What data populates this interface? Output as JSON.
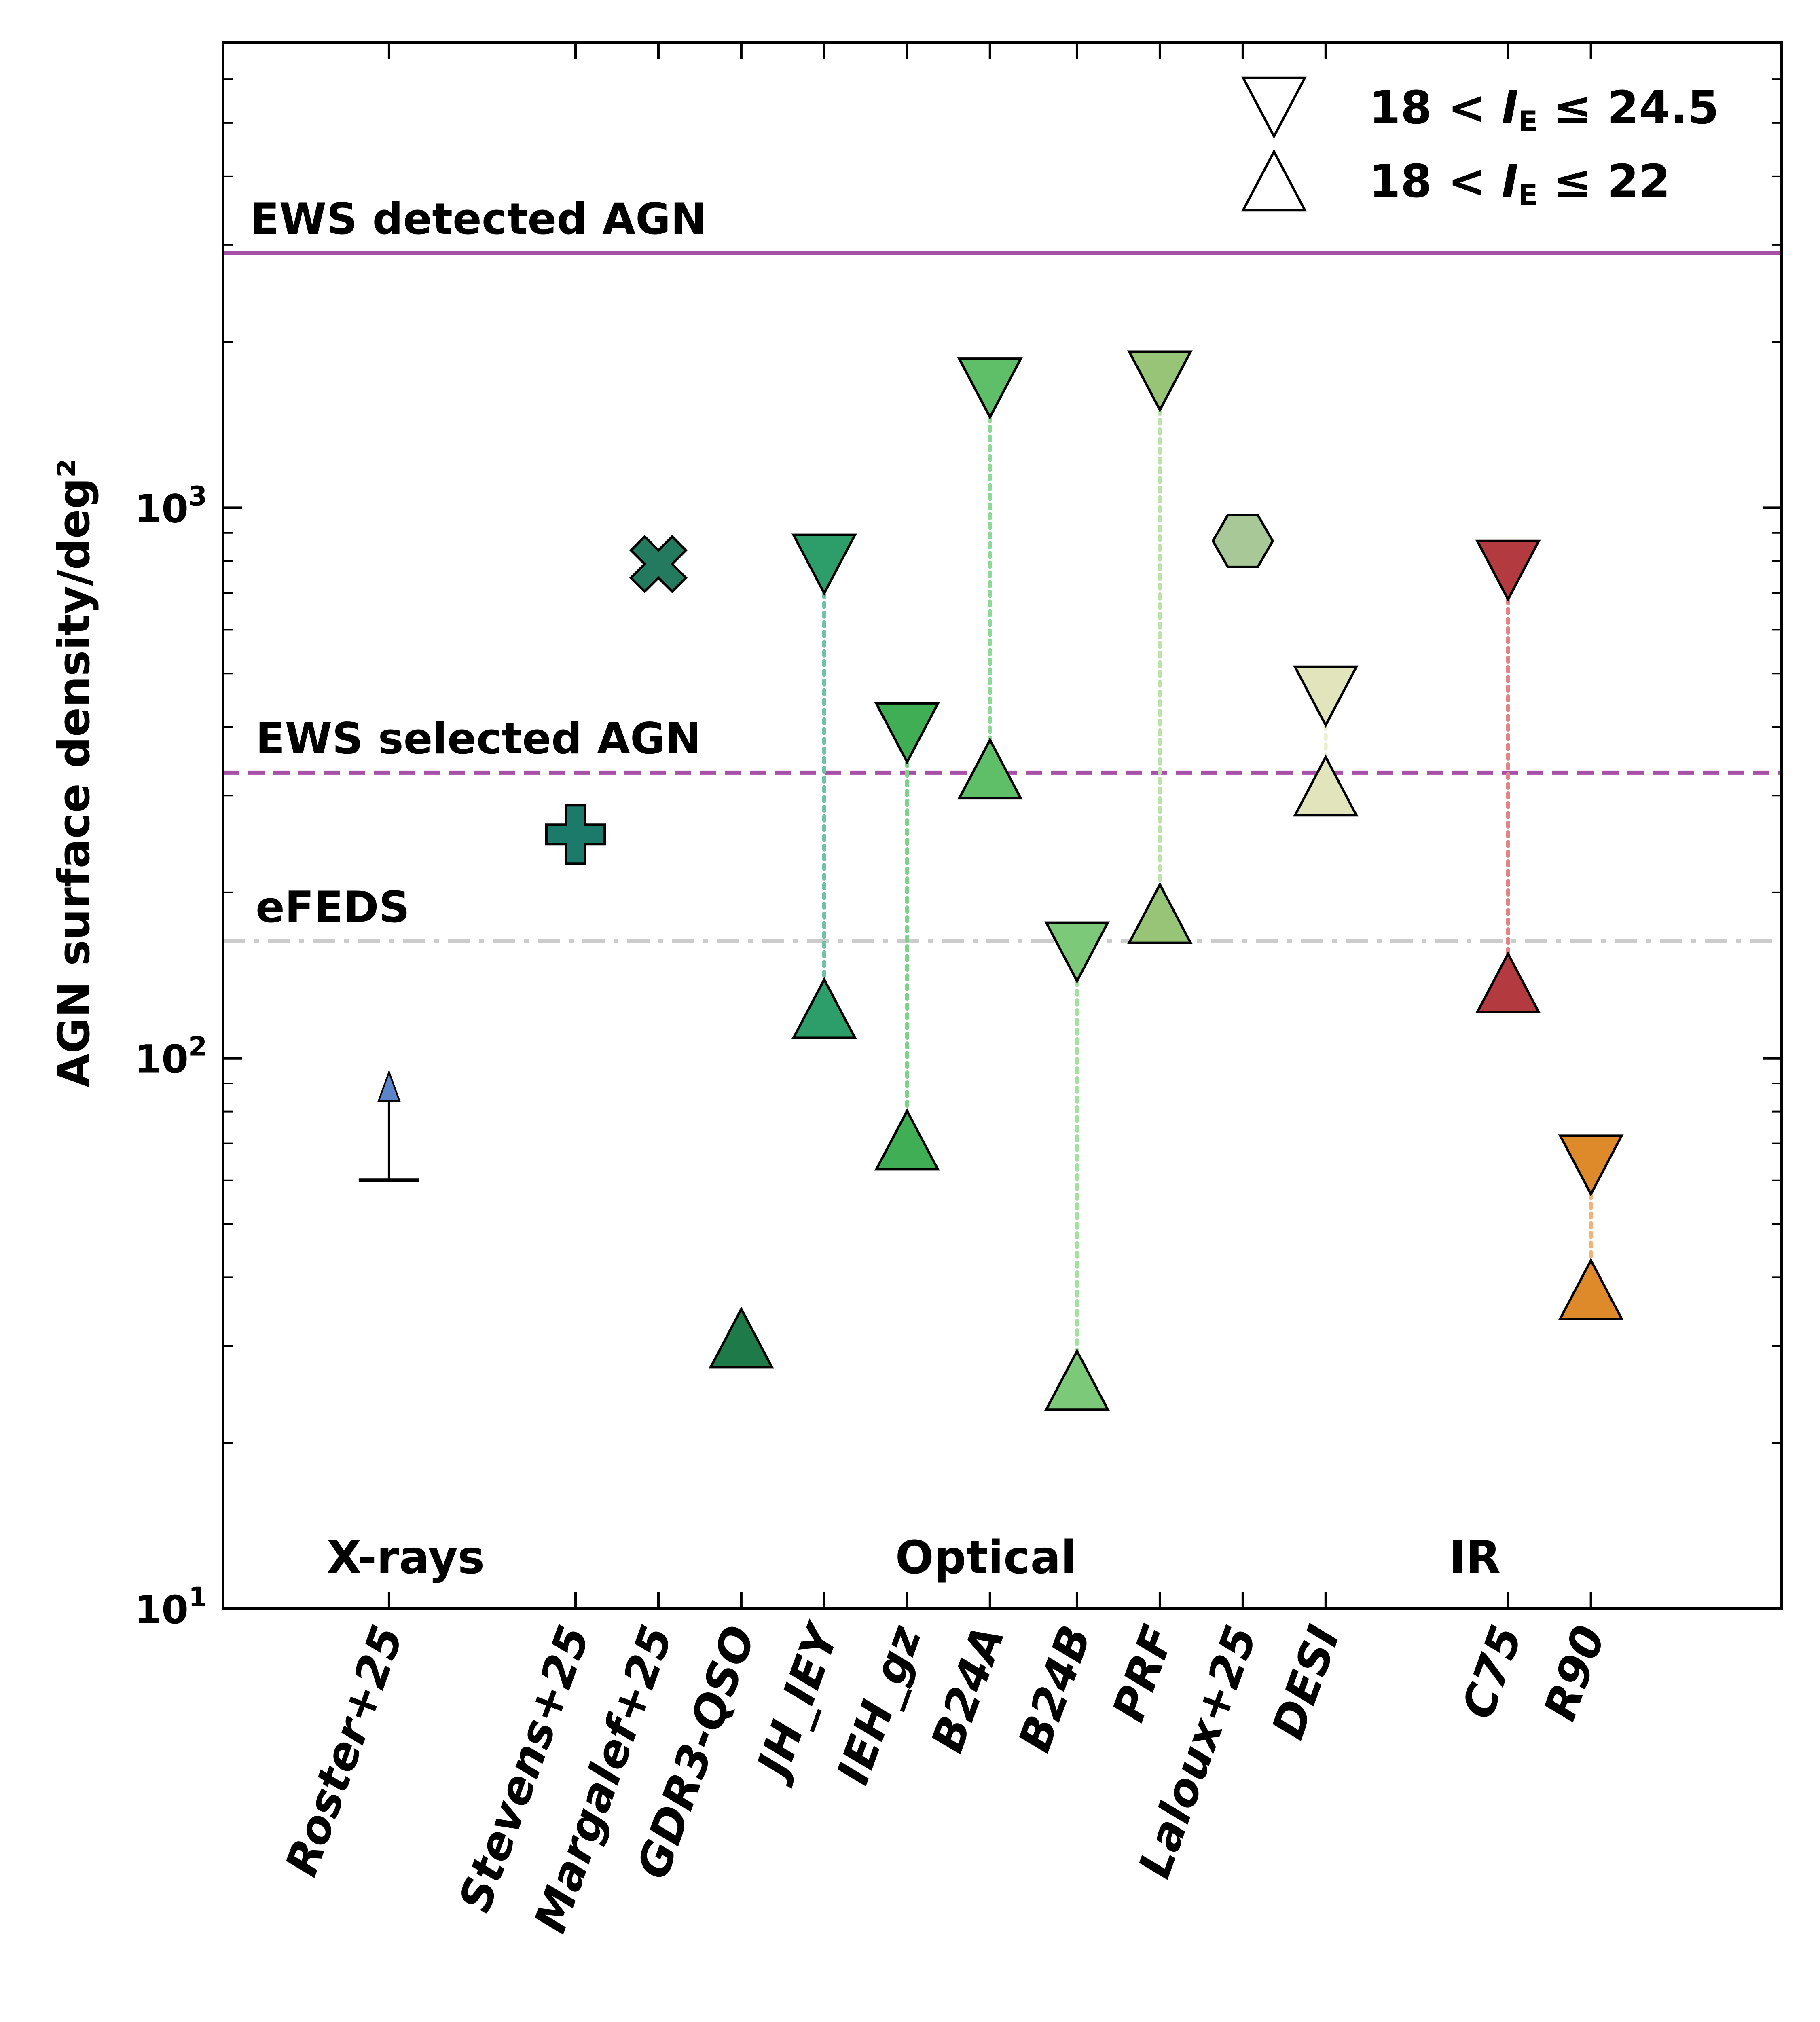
{
  "chart_data": {
    "type": "scatter",
    "ylabel": "AGN surface density/deg²",
    "yscale": "log",
    "ylim": [
      10,
      7000
    ],
    "y_ticks": [
      {
        "value": 10,
        "base": "10",
        "exp": "1"
      },
      {
        "value": 100,
        "base": "10",
        "exp": "2"
      },
      {
        "value": 1000,
        "base": "10",
        "exp": "3"
      }
    ],
    "categories": [
      {
        "key": "roster",
        "label": "Roster+25",
        "pos": 1.0
      },
      {
        "key": "stevens",
        "label": "Stevens+25",
        "pos": 3.25
      },
      {
        "key": "margalef",
        "label": "Margalef+25",
        "pos": 4.25
      },
      {
        "key": "gdr3",
        "label": "GDR3-QSO",
        "pos": 5.25
      },
      {
        "key": "jhiey",
        "label": "JH_IEY",
        "pos": 6.25
      },
      {
        "key": "iehgz",
        "label": "IEH_gz",
        "pos": 7.25
      },
      {
        "key": "b24a",
        "label": "B24A",
        "pos": 8.25
      },
      {
        "key": "b24b",
        "label": "B24B",
        "pos": 9.3
      },
      {
        "key": "prf",
        "label": "PRF",
        "pos": 10.3
      },
      {
        "key": "laloux",
        "label": "Laloux+25",
        "pos": 11.3
      },
      {
        "key": "desi",
        "label": "DESI",
        "pos": 12.3
      },
      {
        "key": "c75",
        "label": "C75",
        "pos": 14.5
      },
      {
        "key": "r90",
        "label": "R90",
        "pos": 15.5
      }
    ],
    "xlim": [
      -1,
      17.8
    ],
    "reference_lines": [
      {
        "label": "EWS detected AGN",
        "value": 2900,
        "style": "solid",
        "color": "#a650a8"
      },
      {
        "label": "EWS selected AGN",
        "value": 330,
        "style": "dashed",
        "color": "#a650a8"
      },
      {
        "label": "eFEDS",
        "value": 163,
        "style": "dashdot",
        "color": "#cccccc"
      }
    ],
    "regions": [
      {
        "label": "X-rays",
        "pos": 1.2
      },
      {
        "label": "Optical",
        "pos": 8.2
      },
      {
        "label": "IR",
        "pos": 14.1
      }
    ],
    "legend": {
      "position": "top-right",
      "entries": [
        {
          "marker": "triangle-down",
          "prefix": "18 < ",
          "sym": "I",
          "sub": "E",
          "suffix": " ≤ 24.5"
        },
        {
          "marker": "triangle-up",
          "prefix": "18 < ",
          "sym": "I",
          "sub": "E",
          "suffix": " ≤ 22"
        }
      ]
    },
    "points": [
      {
        "cat": "roster",
        "marker": "lower-limit",
        "value": 60,
        "arrow_to": 85,
        "color": "#5b84c9"
      },
      {
        "cat": "stevens",
        "marker": "plus",
        "value": 255,
        "color": "#1b7a6a"
      },
      {
        "cat": "margalef",
        "marker": "x",
        "value": 790,
        "color": "#237a5e"
      },
      {
        "cat": "gdr3",
        "marker": "triangle-up",
        "value": 31,
        "color": "#1f7a4a"
      },
      {
        "cat": "jhiey",
        "marker": "triangle-down",
        "value": 790,
        "color": "#2d9e6a"
      },
      {
        "cat": "jhiey",
        "marker": "triangle-up",
        "value": 123,
        "color": "#2d9e6a"
      },
      {
        "cat": "iehgz",
        "marker": "triangle-down",
        "value": 390,
        "color": "#3fae55"
      },
      {
        "cat": "iehgz",
        "marker": "triangle-up",
        "value": 71,
        "color": "#3fae55"
      },
      {
        "cat": "b24a",
        "marker": "triangle-down",
        "value": 1650,
        "color": "#5fbf68"
      },
      {
        "cat": "b24a",
        "marker": "triangle-up",
        "value": 335,
        "color": "#5fbf68"
      },
      {
        "cat": "b24b",
        "marker": "triangle-down",
        "value": 156,
        "color": "#7dc97a"
      },
      {
        "cat": "b24b",
        "marker": "triangle-up",
        "value": 26,
        "color": "#7dc97a"
      },
      {
        "cat": "prf",
        "marker": "triangle-down",
        "value": 1700,
        "color": "#98c478"
      },
      {
        "cat": "prf",
        "marker": "triangle-up",
        "value": 183,
        "color": "#98c478"
      },
      {
        "cat": "laloux",
        "marker": "hexagon",
        "value": 870,
        "color": "#a8c898"
      },
      {
        "cat": "desi",
        "marker": "triangle-down",
        "value": 455,
        "color": "#e2e4bc"
      },
      {
        "cat": "desi",
        "marker": "triangle-up",
        "value": 312,
        "color": "#e2e4bc"
      },
      {
        "cat": "c75",
        "marker": "triangle-down",
        "value": 770,
        "color": "#b33a3e"
      },
      {
        "cat": "c75",
        "marker": "triangle-up",
        "value": 137,
        "color": "#b33a3e"
      },
      {
        "cat": "r90",
        "marker": "triangle-down",
        "value": 64,
        "color": "#df8a2a"
      },
      {
        "cat": "r90",
        "marker": "triangle-up",
        "value": 38,
        "color": "#df8a2a"
      }
    ],
    "connectors": [
      {
        "cat": "jhiey",
        "from": 790,
        "to": 123,
        "color": "#6fc2a6"
      },
      {
        "cat": "iehgz",
        "from": 390,
        "to": 71,
        "color": "#7fd08a"
      },
      {
        "cat": "b24a",
        "from": 1650,
        "to": 335,
        "color": "#90d898"
      },
      {
        "cat": "b24b",
        "from": 156,
        "to": 26,
        "color": "#a6e0a0"
      },
      {
        "cat": "prf",
        "from": 1700,
        "to": 183,
        "color": "#bfe2aa"
      },
      {
        "cat": "desi",
        "from": 455,
        "to": 312,
        "color": "#ecefd2"
      },
      {
        "cat": "c75",
        "from": 770,
        "to": 137,
        "color": "#e08484"
      },
      {
        "cat": "r90",
        "from": 64,
        "to": 38,
        "color": "#f2b27a"
      }
    ]
  }
}
